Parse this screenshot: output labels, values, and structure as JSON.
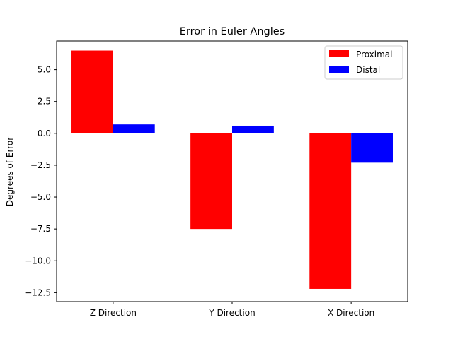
{
  "chart_data": {
    "type": "bar",
    "title": "Error in Euler Angles",
    "xlabel": "",
    "ylabel": "Degrees of Error",
    "categories": [
      "Z Direction",
      "Y Direction",
      "X Direction"
    ],
    "series": [
      {
        "name": "Proximal",
        "color": "#ff0000",
        "values": [
          6.5,
          -7.5,
          -12.2
        ]
      },
      {
        "name": "Distal",
        "color": "#0000ff",
        "values": [
          0.7,
          0.6,
          -2.3
        ]
      }
    ],
    "ylim": [
      -13.2,
      7.25
    ],
    "yticks": [
      5.0,
      2.5,
      0.0,
      -2.5,
      -5.0,
      -7.5,
      -10.0,
      -12.5
    ],
    "ytick_labels": [
      "5.0",
      "2.5",
      "0.0",
      "−2.5",
      "−5.0",
      "−7.5",
      "−10.0",
      "−12.5"
    ],
    "grid": false,
    "legend": "upper right"
  }
}
